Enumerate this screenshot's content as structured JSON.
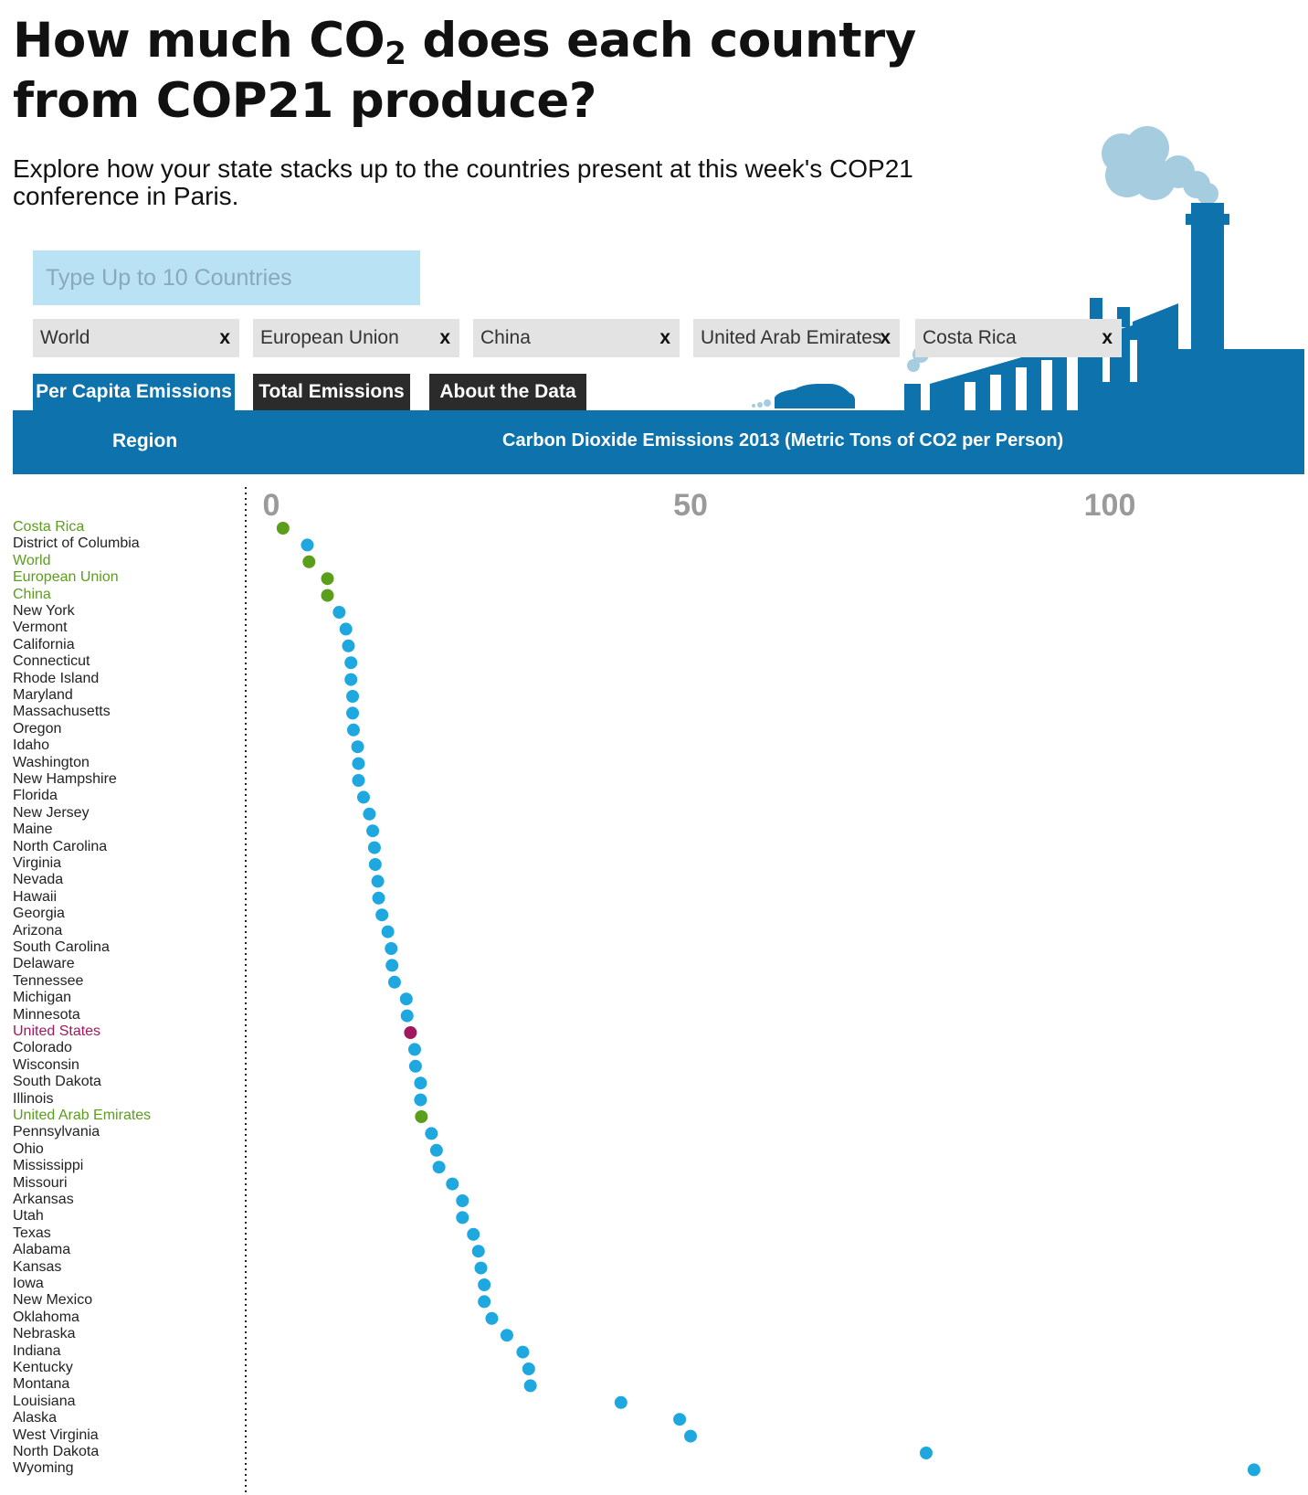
{
  "page": {
    "title_part1": "How much CO",
    "title_sub": "2",
    "title_part2": " does each country from COP21 produce?",
    "subtitle": "Explore how your state stacks up to the countries present at this week's COP21 conference in Paris."
  },
  "search": {
    "placeholder": "Type Up to 10 Countries"
  },
  "chips": [
    {
      "label": "World",
      "remove": "x"
    },
    {
      "label": "European Union",
      "remove": "x"
    },
    {
      "label": "China",
      "remove": "x"
    },
    {
      "label": "United Arab Emirates",
      "remove": "x"
    },
    {
      "label": "Costa Rica",
      "remove": "x"
    }
  ],
  "tabs": [
    {
      "label": "Per Capita Emissions",
      "active": true
    },
    {
      "label": "Total Emissions",
      "active": false
    },
    {
      "label": "About the Data",
      "active": false
    }
  ],
  "table_header": {
    "region": "Region",
    "metric": "Carbon Dioxide Emissions 2013 (Metric Tons of CO2 per Person)"
  },
  "colors": {
    "accent_blue": "#0e72ad",
    "dot_state": "#1ea8df",
    "dot_country": "#5a9e1c",
    "dot_us": "#a1185d",
    "search_bg": "#b9e2f4",
    "chip_bg": "#e3e3e3",
    "tab_inactive": "#2b2b2b",
    "smoke": "#a6cce0"
  },
  "icons": {
    "factory": "factory-skyline-icon",
    "car": "car-icon",
    "remove": "close-icon"
  },
  "chart_data": {
    "type": "scatter",
    "title": "",
    "xlabel": "Carbon Dioxide Emissions 2013 (Metric Tons of CO2 per Person)",
    "ylabel": "Region",
    "x_ticks": [
      0,
      50,
      100
    ],
    "xlim": [
      0,
      118
    ],
    "grid": false,
    "legend": "none",
    "categories": {
      "country": "#5a9e1c",
      "state": "#1ea8df",
      "us": "#a1185d"
    },
    "points": [
      {
        "name": "Costa Rica",
        "value": 1.4,
        "group": "country"
      },
      {
        "name": "District of Columbia",
        "value": 4.3,
        "group": "state"
      },
      {
        "name": "World",
        "value": 4.5,
        "group": "country"
      },
      {
        "name": "European Union",
        "value": 6.7,
        "group": "country"
      },
      {
        "name": "China",
        "value": 6.7,
        "group": "country"
      },
      {
        "name": "New York",
        "value": 8.1,
        "group": "state"
      },
      {
        "name": "Vermont",
        "value": 8.9,
        "group": "state"
      },
      {
        "name": "California",
        "value": 9.2,
        "group": "state"
      },
      {
        "name": "Connecticut",
        "value": 9.5,
        "group": "state"
      },
      {
        "name": "Rhode Island",
        "value": 9.5,
        "group": "state"
      },
      {
        "name": "Maryland",
        "value": 9.7,
        "group": "state"
      },
      {
        "name": "Massachusetts",
        "value": 9.7,
        "group": "state"
      },
      {
        "name": "Oregon",
        "value": 9.8,
        "group": "state"
      },
      {
        "name": "Idaho",
        "value": 10.3,
        "group": "state"
      },
      {
        "name": "Washington",
        "value": 10.4,
        "group": "state"
      },
      {
        "name": "New Hampshire",
        "value": 10.4,
        "group": "state"
      },
      {
        "name": "Florida",
        "value": 11.0,
        "group": "state"
      },
      {
        "name": "New Jersey",
        "value": 11.7,
        "group": "state"
      },
      {
        "name": "Maine",
        "value": 12.1,
        "group": "state"
      },
      {
        "name": "North Carolina",
        "value": 12.3,
        "group": "state"
      },
      {
        "name": "Virginia",
        "value": 12.4,
        "group": "state"
      },
      {
        "name": "Nevada",
        "value": 12.7,
        "group": "state"
      },
      {
        "name": "Hawaii",
        "value": 12.8,
        "group": "state"
      },
      {
        "name": "Georgia",
        "value": 13.2,
        "group": "state"
      },
      {
        "name": "Arizona",
        "value": 13.9,
        "group": "state"
      },
      {
        "name": "South Carolina",
        "value": 14.3,
        "group": "state"
      },
      {
        "name": "Delaware",
        "value": 14.4,
        "group": "state"
      },
      {
        "name": "Tennessee",
        "value": 14.7,
        "group": "state"
      },
      {
        "name": "Michigan",
        "value": 16.1,
        "group": "state"
      },
      {
        "name": "Minnesota",
        "value": 16.2,
        "group": "state"
      },
      {
        "name": "United States",
        "value": 16.6,
        "group": "us"
      },
      {
        "name": "Colorado",
        "value": 17.1,
        "group": "state"
      },
      {
        "name": "Wisconsin",
        "value": 17.2,
        "group": "state"
      },
      {
        "name": "South Dakota",
        "value": 17.8,
        "group": "state"
      },
      {
        "name": "Illinois",
        "value": 17.8,
        "group": "state"
      },
      {
        "name": "United Arab Emirates",
        "value": 17.9,
        "group": "country"
      },
      {
        "name": "Pennsylvania",
        "value": 19.1,
        "group": "state"
      },
      {
        "name": "Ohio",
        "value": 19.7,
        "group": "state"
      },
      {
        "name": "Mississippi",
        "value": 20.0,
        "group": "state"
      },
      {
        "name": "Missouri",
        "value": 21.6,
        "group": "state"
      },
      {
        "name": "Arkansas",
        "value": 22.8,
        "group": "state"
      },
      {
        "name": "Utah",
        "value": 22.8,
        "group": "state"
      },
      {
        "name": "Texas",
        "value": 24.1,
        "group": "state"
      },
      {
        "name": "Alabama",
        "value": 24.7,
        "group": "state"
      },
      {
        "name": "Kansas",
        "value": 25.0,
        "group": "state"
      },
      {
        "name": "Iowa",
        "value": 25.4,
        "group": "state"
      },
      {
        "name": "New Mexico",
        "value": 25.4,
        "group": "state"
      },
      {
        "name": "Oklahoma",
        "value": 26.3,
        "group": "state"
      },
      {
        "name": "Nebraska",
        "value": 28.1,
        "group": "state"
      },
      {
        "name": "Indiana",
        "value": 30.0,
        "group": "state"
      },
      {
        "name": "Kentucky",
        "value": 30.7,
        "group": "state"
      },
      {
        "name": "Montana",
        "value": 30.9,
        "group": "state"
      },
      {
        "name": "Louisiana",
        "value": 41.7,
        "group": "state"
      },
      {
        "name": "Alaska",
        "value": 48.7,
        "group": "state"
      },
      {
        "name": "West Virginia",
        "value": 50.0,
        "group": "state"
      },
      {
        "name": "North Dakota",
        "value": 78.1,
        "group": "state"
      },
      {
        "name": "Wyoming",
        "value": 117.2,
        "group": "state"
      }
    ]
  }
}
